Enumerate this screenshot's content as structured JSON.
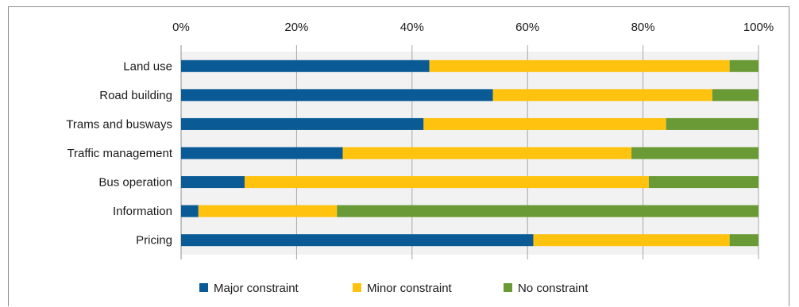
{
  "chart_data": {
    "type": "bar",
    "orientation": "horizontal",
    "stacked": true,
    "categories": [
      "Land use",
      "Road building",
      "Trams and busways",
      "Traffic management",
      "Bus operation",
      "Information",
      "Pricing"
    ],
    "series": [
      {
        "name": "Major constraint",
        "color": "#0a5a96",
        "values": [
          43,
          54,
          42,
          28,
          11,
          3,
          61
        ]
      },
      {
        "name": "Minor constraint",
        "color": "#ffc20e",
        "values": [
          52,
          38,
          42,
          50,
          70,
          24,
          34
        ]
      },
      {
        "name": "No constraint",
        "color": "#6a9a35",
        "values": [
          5,
          8,
          16,
          22,
          19,
          73,
          5
        ]
      }
    ],
    "x_ticks": [
      "0%",
      "20%",
      "40%",
      "60%",
      "80%",
      "100%"
    ],
    "xlim": [
      0,
      100
    ],
    "x_axis_position": "top",
    "grid": true,
    "legend_position": "bottom"
  }
}
